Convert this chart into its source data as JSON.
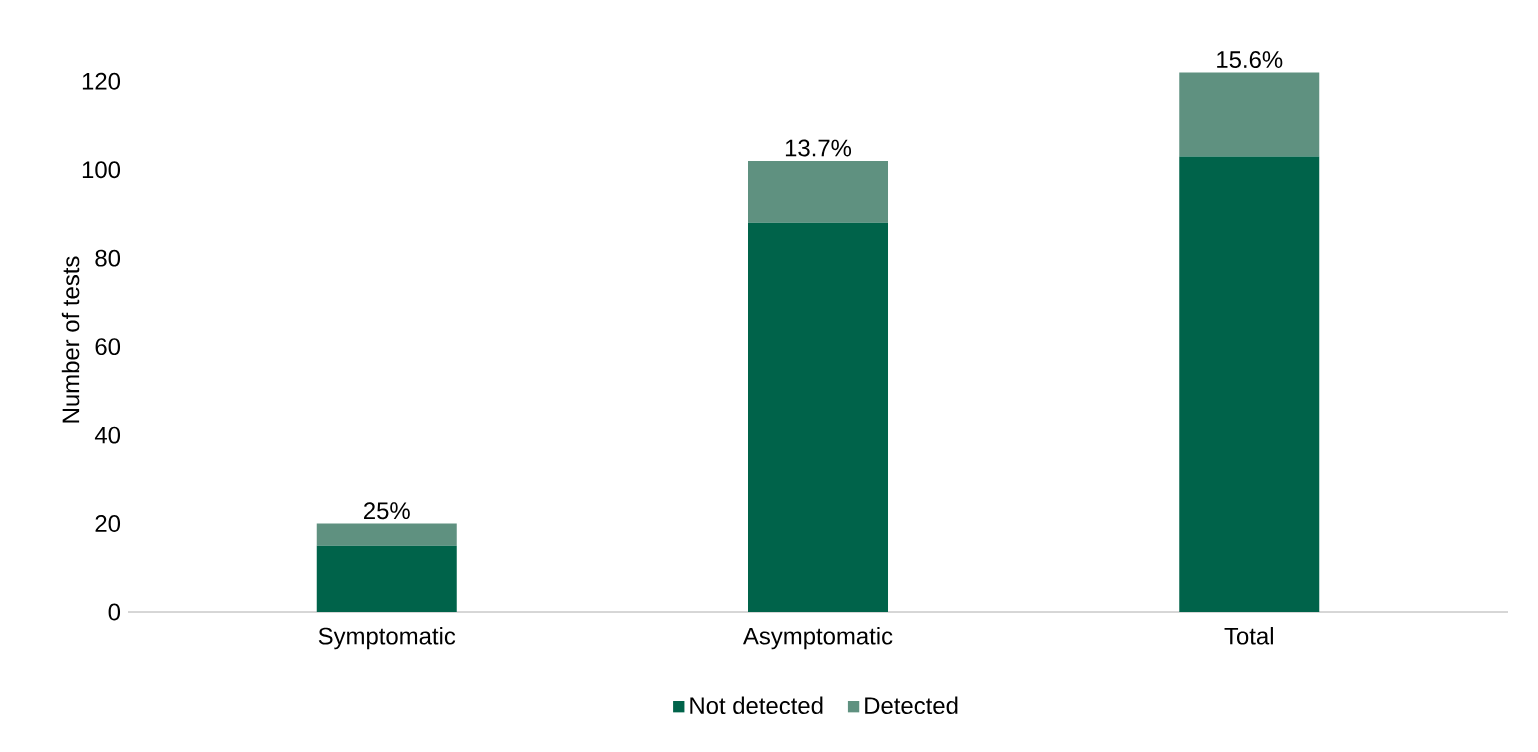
{
  "chart_data": {
    "type": "bar",
    "stacked": true,
    "ylabel": "Number of tests",
    "categories": [
      "Symptomatic",
      "Asymptomatic",
      "Total"
    ],
    "series": [
      {
        "name": "Not detected",
        "color": "#00634a",
        "values": [
          15,
          88,
          103
        ]
      },
      {
        "name": "Detected",
        "color": "#5f9180",
        "values": [
          5,
          14,
          19
        ]
      }
    ],
    "annotations": [
      {
        "text": "25%",
        "x": "Symptomatic",
        "y": 20
      },
      {
        "text": "13.7%",
        "x": "Asymptomatic",
        "y": 102
      },
      {
        "text": "15.6%",
        "x": "Total",
        "y": 122
      }
    ],
    "ylim": [
      0,
      123
    ],
    "yticks": [
      0,
      20,
      40,
      60,
      80,
      100,
      120
    ],
    "grid": false,
    "legend": "bottom"
  }
}
